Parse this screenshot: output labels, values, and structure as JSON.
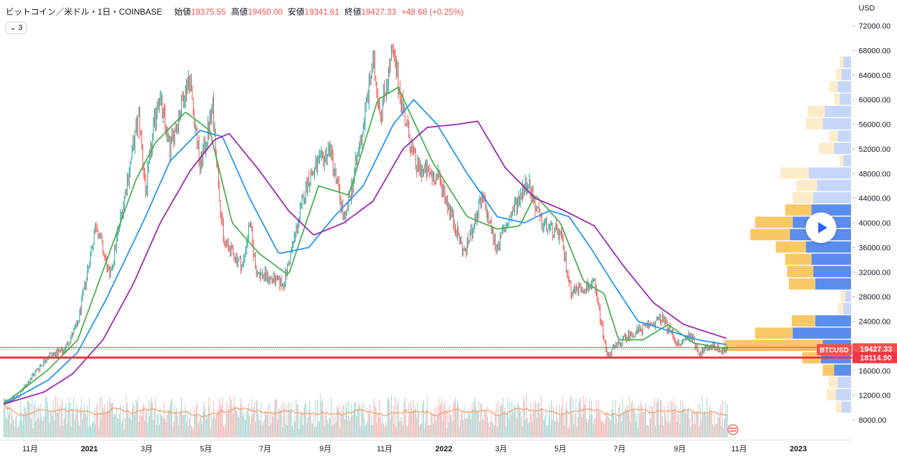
{
  "header": {
    "symbol": "ビットコイン／米ドル・1日・COINBASE",
    "open_label": "始値",
    "open": "19375.55",
    "high_label": "高値",
    "high": "19450.00",
    "low_label": "安値",
    "low": "19341.61",
    "close_label": "終値",
    "close": "19427.33",
    "change": "+48.68 (+0.25%)"
  },
  "indicator_toggle": {
    "arrow": "⌄",
    "count": "3"
  },
  "price_axis": {
    "currency": "USD"
  },
  "price_tags": {
    "last": {
      "symbol": "BTCUSD",
      "value": "19427.33",
      "color": "#ef5350"
    },
    "line": {
      "value": "18114.90",
      "color": "#f23645"
    }
  },
  "colors": {
    "up": "#26a69a",
    "down": "#ef5350",
    "ma_fast": "#4caf50",
    "ma_mid": "#2196f3",
    "ma_slow": "#9c27b0",
    "vol_ma": "#f59e6b",
    "vp_up": "#f9c866",
    "vp_down": "#5b8def"
  },
  "chart_data": {
    "type": "candlestick",
    "xlabel": "",
    "ylabel": "",
    "x_ticks": [
      "11月",
      "2021",
      "3月",
      "5月",
      "7月",
      "9月",
      "11月",
      "2022",
      "3月",
      "5月",
      "7月",
      "9月",
      "11月",
      "2023"
    ],
    "y_ticks": [
      8000,
      12000,
      16000,
      20000,
      24000,
      28000,
      32000,
      36000,
      40000,
      44000,
      48000,
      52000,
      56000,
      60000,
      64000,
      68000,
      72000
    ],
    "ylim": [
      4000,
      74000
    ],
    "xlim": [
      "2020-10-01",
      "2023-02-25"
    ],
    "grid": false,
    "price_path": [
      [
        "2020-10-05",
        10800
      ],
      [
        "2020-10-20",
        11900
      ],
      [
        "2020-11-05",
        15500
      ],
      [
        "2020-11-20",
        18500
      ],
      [
        "2020-12-05",
        19100
      ],
      [
        "2020-12-20",
        23500
      ],
      [
        "2021-01-08",
        40000
      ],
      [
        "2021-01-22",
        31000
      ],
      [
        "2021-02-08",
        46000
      ],
      [
        "2021-02-21",
        57500
      ],
      [
        "2021-02-28",
        45000
      ],
      [
        "2021-03-13",
        61000
      ],
      [
        "2021-03-25",
        52000
      ],
      [
        "2021-04-14",
        64000
      ],
      [
        "2021-04-25",
        49000
      ],
      [
        "2021-05-08",
        58500
      ],
      [
        "2021-05-19",
        37000
      ],
      [
        "2021-06-08",
        33000
      ],
      [
        "2021-06-15",
        40000
      ],
      [
        "2021-06-22",
        32000
      ],
      [
        "2021-07-20",
        30000
      ],
      [
        "2021-08-14",
        47000
      ],
      [
        "2021-09-06",
        52000
      ],
      [
        "2021-09-21",
        40000
      ],
      [
        "2021-10-08",
        54000
      ],
      [
        "2021-10-20",
        66000
      ],
      [
        "2021-10-28",
        58000
      ],
      [
        "2021-11-09",
        67500
      ],
      [
        "2021-11-26",
        54000
      ],
      [
        "2021-12-04",
        49000
      ],
      [
        "2021-12-28",
        47000
      ],
      [
        "2022-01-22",
        35000
      ],
      [
        "2022-02-10",
        44000
      ],
      [
        "2022-02-24",
        36000
      ],
      [
        "2022-03-28",
        47000
      ],
      [
        "2022-04-11",
        40000
      ],
      [
        "2022-05-01",
        38000
      ],
      [
        "2022-05-12",
        29000
      ],
      [
        "2022-06-05",
        30000
      ],
      [
        "2022-06-18",
        18500
      ],
      [
        "2022-07-08",
        21500
      ],
      [
        "2022-08-14",
        24500
      ],
      [
        "2022-08-31",
        20000
      ],
      [
        "2022-09-12",
        22000
      ],
      [
        "2022-09-21",
        18800
      ],
      [
        "2022-10-06",
        20200
      ],
      [
        "2022-10-15",
        19100
      ],
      [
        "2022-10-20",
        19427
      ]
    ],
    "moving_averages": [
      {
        "color": "#4caf50",
        "points": [
          [
            "2020-10-05",
            10600
          ],
          [
            "2020-11-20",
            16200
          ],
          [
            "2020-12-20",
            21000
          ],
          [
            "2021-01-18",
            33500
          ],
          [
            "2021-02-18",
            47000
          ],
          [
            "2021-03-10",
            53000
          ],
          [
            "2021-04-10",
            58000
          ],
          [
            "2021-05-05",
            55000
          ],
          [
            "2021-05-28",
            40000
          ],
          [
            "2021-06-25",
            35000
          ],
          [
            "2021-07-25",
            31500
          ],
          [
            "2021-08-25",
            46000
          ],
          [
            "2021-09-25",
            44500
          ],
          [
            "2021-10-25",
            60000
          ],
          [
            "2021-11-15",
            62000
          ],
          [
            "2021-12-20",
            50000
          ],
          [
            "2022-01-25",
            41000
          ],
          [
            "2022-02-25",
            39000
          ],
          [
            "2022-03-20",
            39500
          ],
          [
            "2022-04-05",
            44500
          ],
          [
            "2022-05-01",
            40000
          ],
          [
            "2022-05-25",
            30500
          ],
          [
            "2022-06-15",
            28500
          ],
          [
            "2022-06-30",
            21000
          ],
          [
            "2022-07-25",
            21000
          ],
          [
            "2022-08-20",
            23500
          ],
          [
            "2022-09-15",
            20500
          ],
          [
            "2022-10-20",
            19500
          ]
        ]
      },
      {
        "color": "#2196f3",
        "points": [
          [
            "2020-10-05",
            10500
          ],
          [
            "2020-11-20",
            14500
          ],
          [
            "2020-12-20",
            19000
          ],
          [
            "2021-01-18",
            27500
          ],
          [
            "2021-02-25",
            40000
          ],
          [
            "2021-03-25",
            50000
          ],
          [
            "2021-04-25",
            55000
          ],
          [
            "2021-05-18",
            54000
          ],
          [
            "2021-06-15",
            44000
          ],
          [
            "2021-07-15",
            35000
          ],
          [
            "2021-08-15",
            36000
          ],
          [
            "2021-09-10",
            41000
          ],
          [
            "2021-10-10",
            46000
          ],
          [
            "2021-11-10",
            56000
          ],
          [
            "2021-12-01",
            60000
          ],
          [
            "2021-12-25",
            56000
          ],
          [
            "2022-01-25",
            48000
          ],
          [
            "2022-02-25",
            41000
          ],
          [
            "2022-03-25",
            40000
          ],
          [
            "2022-04-20",
            42000
          ],
          [
            "2022-05-10",
            41000
          ],
          [
            "2022-06-01",
            36000
          ],
          [
            "2022-06-25",
            30000
          ],
          [
            "2022-07-20",
            24000
          ],
          [
            "2022-08-20",
            22500
          ],
          [
            "2022-09-20",
            21000
          ],
          [
            "2022-10-20",
            20200
          ]
        ]
      },
      {
        "color": "#9c27b0",
        "points": [
          [
            "2020-10-05",
            10600
          ],
          [
            "2020-11-15",
            12500
          ],
          [
            "2020-12-15",
            15500
          ],
          [
            "2021-01-15",
            21000
          ],
          [
            "2021-02-15",
            30000
          ],
          [
            "2021-03-15",
            40000
          ],
          [
            "2021-04-15",
            48500
          ],
          [
            "2021-05-10",
            53500
          ],
          [
            "2021-05-25",
            54500
          ],
          [
            "2021-06-25",
            48500
          ],
          [
            "2021-07-25",
            42000
          ],
          [
            "2021-08-20",
            38000
          ],
          [
            "2021-09-20",
            40000
          ],
          [
            "2021-10-20",
            43500
          ],
          [
            "2021-11-20",
            52000
          ],
          [
            "2021-12-15",
            55500
          ],
          [
            "2022-01-15",
            56000
          ],
          [
            "2022-02-05",
            56500
          ],
          [
            "2022-03-05",
            49000
          ],
          [
            "2022-04-05",
            44000
          ],
          [
            "2022-05-05",
            42000
          ],
          [
            "2022-06-05",
            39500
          ],
          [
            "2022-07-05",
            33000
          ],
          [
            "2022-08-05",
            27000
          ],
          [
            "2022-09-05",
            23500
          ],
          [
            "2022-10-20",
            21200
          ]
        ]
      }
    ],
    "volume_profile": [
      {
        "price": 66000,
        "up": 4,
        "down": 8
      },
      {
        "price": 64000,
        "up": 6,
        "down": 10
      },
      {
        "price": 62000,
        "up": 9,
        "down": 14
      },
      {
        "price": 60000,
        "up": 6,
        "down": 12
      },
      {
        "price": 58000,
        "up": 18,
        "down": 28
      },
      {
        "price": 56000,
        "up": 18,
        "down": 30
      },
      {
        "price": 54000,
        "up": 9,
        "down": 14
      },
      {
        "price": 52000,
        "up": 16,
        "down": 18
      },
      {
        "price": 50000,
        "up": 4,
        "down": 8
      },
      {
        "price": 48000,
        "up": 30,
        "down": 45
      },
      {
        "price": 46000,
        "up": 22,
        "down": 36
      },
      {
        "price": 44000,
        "up": 22,
        "down": 40
      },
      {
        "price": 42000,
        "up": 28,
        "down": 42
      },
      {
        "price": 40000,
        "up": 40,
        "down": 62
      },
      {
        "price": 38000,
        "up": 42,
        "down": 65
      },
      {
        "price": 36000,
        "up": 32,
        "down": 48
      },
      {
        "price": 34000,
        "up": 28,
        "down": 42
      },
      {
        "price": 32000,
        "up": 28,
        "down": 40
      },
      {
        "price": 30000,
        "up": 28,
        "down": 38
      },
      {
        "price": 28000,
        "up": 5,
        "down": 6
      },
      {
        "price": 26000,
        "up": 6,
        "down": 8
      },
      {
        "price": 24000,
        "up": 25,
        "down": 38
      },
      {
        "price": 22000,
        "up": 40,
        "down": 62
      },
      {
        "price": 20000,
        "up": 105,
        "down": 30
      },
      {
        "price": 18000,
        "up": 20,
        "down": 32
      },
      {
        "price": 16000,
        "up": 12,
        "down": 18
      },
      {
        "price": 14000,
        "up": 10,
        "down": 14
      },
      {
        "price": 12000,
        "up": 10,
        "down": 16
      },
      {
        "price": 10000,
        "up": 6,
        "down": 10
      }
    ],
    "last_price": 19427.33,
    "horizontal_line": 18114.9
  }
}
